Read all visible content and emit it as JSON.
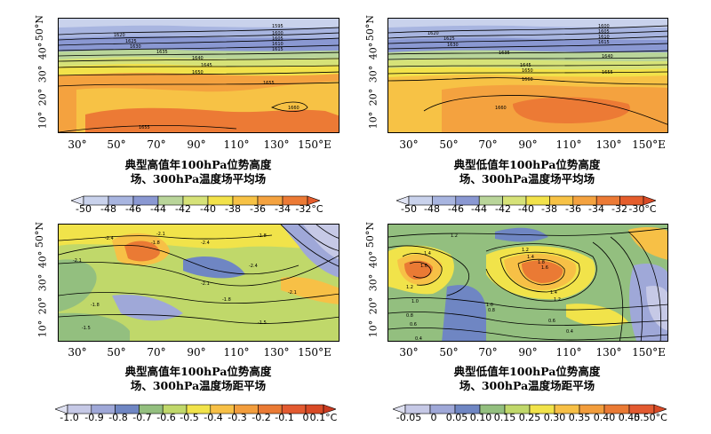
{
  "colors": {
    "warm_ramp": [
      "#c9d2ec",
      "#a8b5e0",
      "#8a98d2",
      "#b9d59a",
      "#d6e278",
      "#f2e24a",
      "#f7c245",
      "#f4a23f",
      "#ec7a35"
    ],
    "anom_ramp": [
      "#c6c9e6",
      "#9fa8d8",
      "#6f86c3",
      "#93bf7f",
      "#c0d86a",
      "#f1e34a",
      "#f7c046",
      "#f29d3c",
      "#ea7a34",
      "#e35a30"
    ],
    "contour": "#000000"
  },
  "panels": [
    {
      "id": "high-mean",
      "yticks": [
        "10°",
        "20°",
        "30°",
        "40°",
        "50°N"
      ],
      "xticks": [
        "30°",
        "50°",
        "70°",
        "90°",
        "110°",
        "130°",
        "150°E"
      ],
      "caption": [
        "典型高值年100hPa位势高度",
        "场、300hPa温度场平均场"
      ],
      "colorbar": [
        "-50",
        "-48",
        "-46",
        "-44",
        "-42",
        "-40",
        "-38",
        "-36",
        "-34",
        "-32°C"
      ],
      "contour_labels": [
        "1595",
        "1600",
        "1605",
        "1610",
        "1615",
        "1620",
        "1625",
        "1630",
        "1635",
        "1640",
        "1645",
        "1650",
        "1655",
        "1660",
        "1655"
      ]
    },
    {
      "id": "low-mean",
      "yticks": [
        "10°",
        "20°",
        "30°",
        "40°",
        "50°N"
      ],
      "xticks": [
        "30°",
        "50°",
        "70°",
        "90°",
        "110°",
        "130°",
        "150°E"
      ],
      "caption": [
        "典型低值年100hPa位势高度",
        "场、300hPa温度场平均场"
      ],
      "colorbar": [
        "-50",
        "-48",
        "-46",
        "-44",
        "-42",
        "-40",
        "-38",
        "-36",
        "-34",
        "-32",
        "-30°C"
      ],
      "contour_labels": [
        "1600",
        "1605",
        "1610",
        "1615",
        "1620",
        "1625",
        "1630",
        "1635",
        "1640",
        "1645",
        "1650",
        "1655",
        "1660",
        "1660"
      ]
    },
    {
      "id": "high-anomaly",
      "yticks": [
        "10°",
        "20°",
        "30°",
        "40°",
        "50°N"
      ],
      "xticks": [
        "30°",
        "50°",
        "70°",
        "90°",
        "110°",
        "130°",
        "150°E"
      ],
      "caption": [
        "典型高值年100hPa位势高度",
        "场、300hPa温度场距平场"
      ],
      "colorbar": [
        "-1.0",
        "-0.9",
        "-0.8",
        "-0.7",
        "-0.6",
        "-0.5",
        "-0.4",
        "-0.3",
        "-0.2",
        "-0.1",
        "0",
        "0.1°C"
      ],
      "contour_labels": [
        "-2.4",
        "-2.1",
        "-1.8",
        "-2.4",
        "-1.8",
        "-2.1",
        "-2.4",
        "-2.1",
        "-2.1",
        "-1.8",
        "-1.8",
        "-1.5",
        "-1.5"
      ]
    },
    {
      "id": "low-anomaly",
      "yticks": [
        "10°",
        "20°",
        "30°",
        "40°",
        "50°N"
      ],
      "xticks": [
        "30°",
        "50°",
        "70°",
        "90°",
        "110°",
        "130°",
        "150°E"
      ],
      "caption": [
        "典型低值年100hPa位势高度",
        "场、300hPa温度场距平场"
      ],
      "colorbar": [
        "-0.05",
        "0",
        "0.05",
        "0.10",
        "0.15",
        "0.25",
        "0.30",
        "0.35",
        "0.40",
        "0.45",
        "0.50°C"
      ],
      "contour_labels": [
        "1.2",
        "1.4",
        "1.2",
        "1.0",
        "0.8",
        "0.6",
        "0.4",
        "1.2",
        "1.4",
        "1.6",
        "1.8",
        "1.4",
        "1.2",
        "1.0",
        "0.8",
        "0.6",
        "0.4",
        "1.6"
      ]
    }
  ]
}
